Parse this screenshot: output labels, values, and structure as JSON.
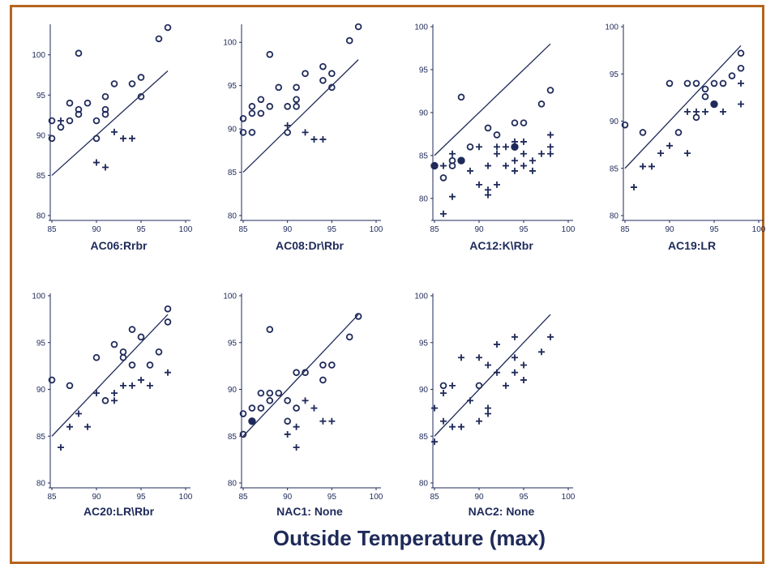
{
  "figure": {
    "xlabel": "Outside Temperature (max)",
    "colors": {
      "ink": "#1f2a5a",
      "border": "#b5651d"
    },
    "xlim": [
      85,
      100
    ],
    "xticks": [
      85,
      90,
      95,
      100
    ]
  },
  "chart_data": [
    {
      "type": "scatter",
      "title": "AC06:Rrbr",
      "ylim": [
        80,
        103.5
      ],
      "yticks": [
        80,
        85,
        90,
        95,
        100
      ],
      "line": [
        [
          85,
          85
        ],
        [
          98,
          98
        ]
      ],
      "series": [
        {
          "marker": "circle",
          "points": [
            [
              85,
              91.8
            ],
            [
              85,
              89.6
            ],
            [
              86,
              91
            ],
            [
              87,
              94
            ],
            [
              87,
              91.8
            ],
            [
              88,
              92.6
            ],
            [
              88,
              93.2
            ],
            [
              88,
              100.2
            ],
            [
              89,
              94
            ],
            [
              90,
              91.8
            ],
            [
              90,
              89.6
            ],
            [
              91,
              94.8
            ],
            [
              91,
              93.2
            ],
            [
              91,
              92.6
            ],
            [
              92,
              96.4
            ],
            [
              94,
              96.4
            ],
            [
              95,
              97.2
            ],
            [
              95,
              94.8
            ],
            [
              97,
              102
            ],
            [
              98,
              103.4
            ]
          ]
        },
        {
          "marker": "plus",
          "points": [
            [
              86,
              91.8
            ],
            [
              90,
              86.6
            ],
            [
              91,
              86
            ],
            [
              92,
              90.4
            ],
            [
              93,
              89.6
            ],
            [
              94,
              89.6
            ]
          ]
        },
        {
          "marker": "dot",
          "points": []
        }
      ]
    },
    {
      "type": "scatter",
      "title": "AC08:Dr\\Rbr",
      "ylim": [
        80,
        101.8
      ],
      "yticks": [
        80,
        85,
        90,
        95,
        100
      ],
      "line": [
        [
          85,
          85
        ],
        [
          98,
          98
        ]
      ],
      "series": [
        {
          "marker": "circle",
          "points": [
            [
              85,
              91.2
            ],
            [
              85,
              89.6
            ],
            [
              86,
              92.6
            ],
            [
              86,
              91.8
            ],
            [
              86,
              89.6
            ],
            [
              87,
              93.4
            ],
            [
              87,
              91.8
            ],
            [
              88,
              98.6
            ],
            [
              88,
              92.6
            ],
            [
              89,
              94.8
            ],
            [
              90,
              92.6
            ],
            [
              90,
              89.6
            ],
            [
              91,
              94.8
            ],
            [
              91,
              93.4
            ],
            [
              91,
              92.6
            ],
            [
              92,
              96.4
            ],
            [
              94,
              97.2
            ],
            [
              94,
              95.6
            ],
            [
              95,
              96.4
            ],
            [
              95,
              94.8
            ],
            [
              97,
              100.2
            ],
            [
              98,
              101.8
            ]
          ]
        },
        {
          "marker": "plus",
          "points": [
            [
              90,
              90.4
            ],
            [
              92,
              89.6
            ],
            [
              93,
              88.8
            ],
            [
              94,
              88.8
            ]
          ]
        },
        {
          "marker": "dot",
          "points": []
        }
      ]
    },
    {
      "type": "scatter",
      "title": "AC12:K\\Rbr",
      "ylim": [
        78,
        100
      ],
      "yticks": [
        80,
        85,
        90,
        95,
        100
      ],
      "line": [
        [
          85,
          85
        ],
        [
          98,
          98
        ]
      ],
      "series": [
        {
          "marker": "circle",
          "points": [
            [
              86,
              82.4
            ],
            [
              87,
              83.8
            ],
            [
              87,
              84.4
            ],
            [
              88,
              91.8
            ],
            [
              89,
              86
            ],
            [
              91,
              88.2
            ],
            [
              92,
              87.4
            ],
            [
              94,
              88.8
            ],
            [
              95,
              88.8
            ],
            [
              97,
              91
            ],
            [
              98,
              92.6
            ]
          ]
        },
        {
          "marker": "plus",
          "points": [
            [
              86,
              83.8
            ],
            [
              86,
              78.2
            ],
            [
              87,
              85.2
            ],
            [
              87,
              80.2
            ],
            [
              88,
              84.4
            ],
            [
              89,
              83.2
            ],
            [
              90,
              86
            ],
            [
              90,
              81.6
            ],
            [
              91,
              83.8
            ],
            [
              91,
              81
            ],
            [
              91,
              80.4
            ],
            [
              92,
              86
            ],
            [
              92,
              85.2
            ],
            [
              92,
              81.6
            ],
            [
              93,
              86
            ],
            [
              93,
              83.8
            ],
            [
              94,
              86.6
            ],
            [
              94,
              84.4
            ],
            [
              94,
              83.2
            ],
            [
              95,
              86.6
            ],
            [
              95,
              85.2
            ],
            [
              95,
              83.8
            ],
            [
              96,
              84.4
            ],
            [
              96,
              83.2
            ],
            [
              97,
              85.2
            ],
            [
              98,
              87.4
            ],
            [
              98,
              86
            ],
            [
              98,
              85.2
            ]
          ]
        },
        {
          "marker": "dot",
          "points": [
            [
              85,
              83.8
            ],
            [
              88,
              84.4
            ],
            [
              94,
              86
            ]
          ]
        }
      ]
    },
    {
      "type": "scatter",
      "title": "AC19:LR",
      "ylim": [
        80,
        100
      ],
      "yticks": [
        80,
        85,
        90,
        95,
        100
      ],
      "line": [
        [
          85,
          85
        ],
        [
          98,
          98
        ]
      ],
      "series": [
        {
          "marker": "circle",
          "points": [
            [
              85,
              89.6
            ],
            [
              87,
              88.8
            ],
            [
              90,
              94
            ],
            [
              91,
              88.8
            ],
            [
              92,
              94
            ],
            [
              93,
              94
            ],
            [
              93,
              90.4
            ],
            [
              94,
              93.4
            ],
            [
              94,
              92.6
            ],
            [
              95,
              94
            ],
            [
              96,
              94
            ],
            [
              97,
              94.8
            ],
            [
              98,
              97.2
            ],
            [
              98,
              95.6
            ]
          ]
        },
        {
          "marker": "plus",
          "points": [
            [
              86,
              83
            ],
            [
              87,
              85.2
            ],
            [
              88,
              85.2
            ],
            [
              89,
              86.6
            ],
            [
              90,
              87.4
            ],
            [
              92,
              91
            ],
            [
              92,
              86.6
            ],
            [
              93,
              91
            ],
            [
              94,
              91
            ],
            [
              95,
              91.8
            ],
            [
              96,
              91
            ],
            [
              98,
              94
            ],
            [
              98,
              91.8
            ]
          ]
        },
        {
          "marker": "dot",
          "points": [
            [
              95,
              91.8
            ]
          ]
        }
      ]
    },
    {
      "type": "scatter",
      "title": "AC20:LR\\Rbr",
      "ylim": [
        80,
        100
      ],
      "yticks": [
        80,
        85,
        90,
        95,
        100
      ],
      "line": [
        [
          85,
          85
        ],
        [
          98,
          98
        ]
      ],
      "series": [
        {
          "marker": "circle",
          "points": [
            [
              85,
              91
            ],
            [
              87,
              90.4
            ],
            [
              90,
              93.4
            ],
            [
              91,
              88.8
            ],
            [
              92,
              94.8
            ],
            [
              93,
              94
            ],
            [
              93,
              93.4
            ],
            [
              94,
              96.4
            ],
            [
              94,
              92.6
            ],
            [
              95,
              95.6
            ],
            [
              96,
              92.6
            ],
            [
              97,
              94
            ],
            [
              98,
              98.6
            ],
            [
              98,
              97.2
            ]
          ]
        },
        {
          "marker": "plus",
          "points": [
            [
              86,
              83.8
            ],
            [
              87,
              86
            ],
            [
              88,
              87.4
            ],
            [
              89,
              86
            ],
            [
              90,
              89.6
            ],
            [
              92,
              89.6
            ],
            [
              92,
              88.8
            ],
            [
              93,
              90.4
            ],
            [
              94,
              90.4
            ],
            [
              95,
              91
            ],
            [
              96,
              90.4
            ],
            [
              98,
              91.8
            ]
          ]
        },
        {
          "marker": "dot",
          "points": []
        }
      ]
    },
    {
      "type": "scatter",
      "title": "NAC1: None",
      "ylim": [
        80,
        100
      ],
      "yticks": [
        80,
        85,
        90,
        95,
        100
      ],
      "line": [
        [
          85,
          85
        ],
        [
          98,
          98
        ]
      ],
      "series": [
        {
          "marker": "circle",
          "points": [
            [
              85,
              87.4
            ],
            [
              85,
              85.2
            ],
            [
              86,
              88
            ],
            [
              87,
              88
            ],
            [
              87,
              89.6
            ],
            [
              88,
              89.6
            ],
            [
              88,
              88.8
            ],
            [
              88,
              96.4
            ],
            [
              89,
              89.6
            ],
            [
              90,
              88.8
            ],
            [
              90,
              86.6
            ],
            [
              91,
              91.8
            ],
            [
              91,
              88
            ],
            [
              92,
              91.8
            ],
            [
              94,
              92.6
            ],
            [
              94,
              91
            ],
            [
              95,
              92.6
            ],
            [
              97,
              95.6
            ],
            [
              98,
              97.8
            ]
          ]
        },
        {
          "marker": "plus",
          "points": [
            [
              90,
              85.2
            ],
            [
              91,
              86
            ],
            [
              91,
              83.8
            ],
            [
              92,
              88.8
            ],
            [
              93,
              88
            ],
            [
              94,
              86.6
            ],
            [
              95,
              86.6
            ]
          ]
        },
        {
          "marker": "dot",
          "points": [
            [
              86,
              86.6
            ]
          ]
        }
      ]
    },
    {
      "type": "scatter",
      "title": "NAC2: None",
      "ylim": [
        80,
        100
      ],
      "yticks": [
        80,
        85,
        90,
        95,
        100
      ],
      "line": [
        [
          85,
          85
        ],
        [
          98,
          98
        ]
      ],
      "series": [
        {
          "marker": "circle",
          "points": [
            [
              86,
              90.4
            ],
            [
              90,
              90.4
            ]
          ]
        },
        {
          "marker": "plus",
          "points": [
            [
              85,
              88
            ],
            [
              85,
              84.4
            ],
            [
              86,
              89.6
            ],
            [
              86,
              86.6
            ],
            [
              87,
              90.4
            ],
            [
              87,
              86
            ],
            [
              88,
              93.4
            ],
            [
              88,
              86
            ],
            [
              89,
              88.8
            ],
            [
              90,
              93.4
            ],
            [
              90,
              86.6
            ],
            [
              91,
              92.6
            ],
            [
              91,
              88
            ],
            [
              91,
              87.4
            ],
            [
              92,
              94.8
            ],
            [
              92,
              91.8
            ],
            [
              93,
              90.4
            ],
            [
              94,
              95.6
            ],
            [
              94,
              93.4
            ],
            [
              94,
              91.8
            ],
            [
              95,
              92.6
            ],
            [
              95,
              91
            ],
            [
              97,
              94
            ],
            [
              98,
              95.6
            ]
          ]
        },
        {
          "marker": "dot",
          "points": []
        }
      ]
    }
  ]
}
